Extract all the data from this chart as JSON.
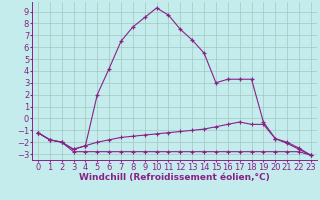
{
  "xlabel": "Windchill (Refroidissement éolien,°C)",
  "x": [
    0,
    1,
    2,
    3,
    4,
    5,
    6,
    7,
    8,
    9,
    10,
    11,
    12,
    13,
    14,
    15,
    16,
    17,
    18,
    19,
    20,
    21,
    22,
    23
  ],
  "line_big": [
    -1.2,
    -1.8,
    -2.0,
    -2.6,
    -2.3,
    2.0,
    4.2,
    6.5,
    7.7,
    8.5,
    9.3,
    8.7,
    7.5,
    6.6,
    5.5,
    3.0,
    3.3,
    3.3,
    3.3,
    -0.3,
    -1.7,
    -2.1,
    -2.6,
    -3.1
  ],
  "line_mid": [
    -1.2,
    -1.8,
    -2.0,
    -2.6,
    -2.3,
    -2.0,
    -1.8,
    -1.6,
    -1.5,
    -1.4,
    -1.3,
    -1.2,
    -1.1,
    -1.0,
    -0.9,
    -0.7,
    -0.5,
    -0.3,
    -0.5,
    -0.5,
    -1.7,
    -2.0,
    -2.5,
    -3.1
  ],
  "line_flat": [
    -1.2,
    -1.8,
    -2.0,
    -2.8,
    -2.8,
    -2.8,
    -2.8,
    -2.8,
    -2.8,
    -2.8,
    -2.8,
    -2.8,
    -2.8,
    -2.8,
    -2.8,
    -2.8,
    -2.8,
    -2.8,
    -2.8,
    -2.8,
    -2.8,
    -2.8,
    -2.8,
    -3.1
  ],
  "background_color": "#c5ecec",
  "grid_color": "#a0c8c0",
  "line_color": "#882288",
  "ylim": [
    -3.5,
    9.8
  ],
  "yticks": [
    -3,
    -2,
    -1,
    0,
    1,
    2,
    3,
    4,
    5,
    6,
    7,
    8,
    9
  ],
  "xticks": [
    0,
    1,
    2,
    3,
    4,
    5,
    6,
    7,
    8,
    9,
    10,
    11,
    12,
    13,
    14,
    15,
    16,
    17,
    18,
    19,
    20,
    21,
    22,
    23
  ],
  "xlabel_fontsize": 6.5,
  "tick_fontsize": 6.0
}
